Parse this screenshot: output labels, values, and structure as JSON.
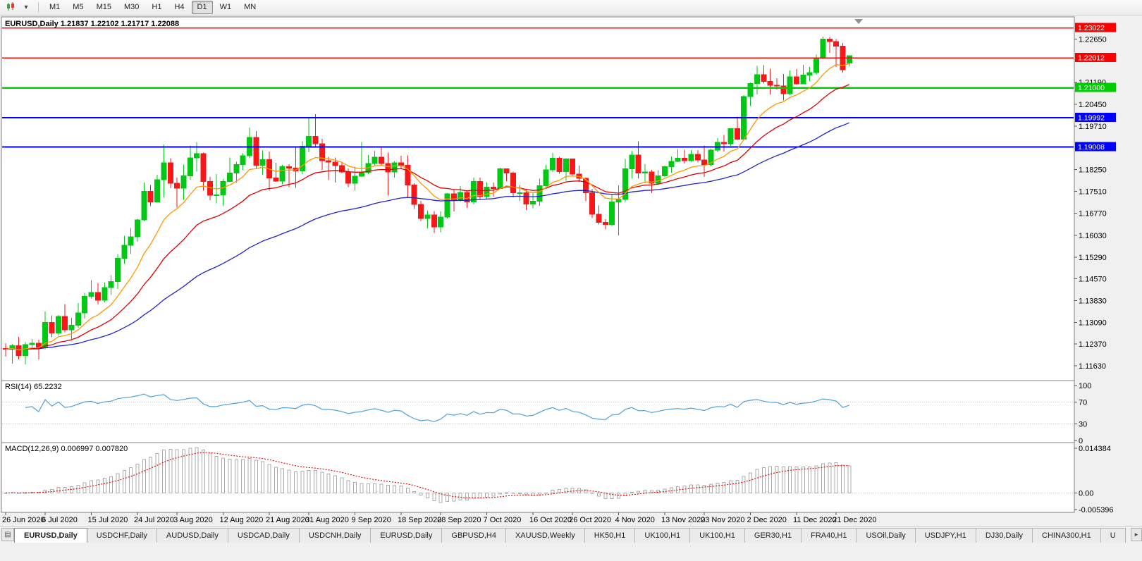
{
  "toolbar": {
    "timeframes": [
      "M1",
      "M5",
      "M15",
      "M30",
      "H1",
      "H4",
      "D1",
      "W1",
      "MN"
    ],
    "selected_timeframe": "D1",
    "icons": {
      "caret": "▾"
    }
  },
  "chart": {
    "symbol": "EURUSD",
    "period": "Daily"
  },
  "chart_data": {
    "type": "candlestick",
    "symbol": "EURUSD",
    "period": "Daily",
    "title": "EURUSD,Daily 1.21837 1.22102 1.21717 1.22088",
    "ohlc": {
      "open": 1.21837,
      "high": 1.22102,
      "low": 1.21717,
      "close": 1.22088
    },
    "colors": {
      "up": "#00C814",
      "down": "#F51818",
      "background": "#FFFFFF",
      "panel_border": "#808080"
    },
    "price_axis": {
      "range": {
        "top": 1.2325,
        "bottom": 1.1118
      },
      "ticks": [
        "1.22650",
        "1.21190",
        "1.20450",
        "1.19710",
        "1.18250",
        "1.17510",
        "1.16770",
        "1.16030",
        "1.15290",
        "1.14570",
        "1.13830",
        "1.13090",
        "1.12370",
        "1.11630"
      ]
    },
    "hlines": [
      {
        "price": 1.23022,
        "label": "1.23022",
        "color": "#FF0000",
        "width": 1.4
      },
      {
        "price": 1.22012,
        "label": "1.22012",
        "color": "#FF0000",
        "width": 1.4
      },
      {
        "price": 1.21,
        "label": "1.21000",
        "color": "#00CC00",
        "width": 2.2
      },
      {
        "price": 1.19992,
        "label": "1.19992",
        "color": "#0000FF",
        "width": 2.2
      },
      {
        "price": 1.19008,
        "label": "1.19008",
        "color": "#0000FF",
        "width": 2.2
      }
    ],
    "moving_averages": [
      {
        "period": 10,
        "method": "ema",
        "color": "#FF9900"
      },
      {
        "period": 21,
        "method": "ema",
        "color": "#E00000"
      },
      {
        "period": 50,
        "method": "ema",
        "color": "#2222CC"
      }
    ],
    "rsi": {
      "label": "RSI(14) 65.2232",
      "period": 14,
      "current": 65.2232,
      "color": "#4DA3D9",
      "levels": [
        100,
        70,
        30,
        0
      ],
      "level_lines": [
        70,
        30
      ]
    },
    "macd": {
      "label": "MACD(12,26,9) 0.006997 0.007820",
      "fast": 12,
      "slow": 26,
      "signal_period": 9,
      "current_macd": 0.006997,
      "current_signal": 0.00782,
      "scale_top": 0.014384,
      "scale_bottom": -0.005396,
      "axis_labels": [
        {
          "text": "0.014384",
          "value": 0.014384
        },
        {
          "text": "0.00",
          "value": 0
        },
        {
          "text": "-0.005396",
          "value": -0.005396
        }
      ],
      "histogram_color": "#ABABAB",
      "signal_color": "#E00000"
    },
    "date_labels": [
      {
        "text": "26 Jun 2020",
        "bar": 0
      },
      {
        "text": "6 Jul 2020",
        "bar": 6
      },
      {
        "text": "15 Jul 2020",
        "bar": 13
      },
      {
        "text": "24 Jul 2020",
        "bar": 20
      },
      {
        "text": "3 Aug 2020",
        "bar": 26
      },
      {
        "text": "12 Aug 2020",
        "bar": 33
      },
      {
        "text": "21 Aug 2020",
        "bar": 40
      },
      {
        "text": "31 Aug 2020",
        "bar": 46
      },
      {
        "text": "9 Sep 2020",
        "bar": 53
      },
      {
        "text": "18 Sep 2020",
        "bar": 60
      },
      {
        "text": "28 Sep 2020",
        "bar": 66
      },
      {
        "text": "7 Oct 2020",
        "bar": 73
      },
      {
        "text": "16 Oct 2020",
        "bar": 80
      },
      {
        "text": "26 Oct 2020",
        "bar": 86
      },
      {
        "text": "4 Nov 2020",
        "bar": 93
      },
      {
        "text": "13 Nov 2020",
        "bar": 100
      },
      {
        "text": "23 Nov 2020",
        "bar": 106
      },
      {
        "text": "2 Dec 2020",
        "bar": 113
      },
      {
        "text": "11 Dec 2020",
        "bar": 120
      },
      {
        "text": "21 Dec 2020",
        "bar": 126
      }
    ],
    "candles": [
      [
        1.1221,
        1.1239,
        1.1194,
        1.1219
      ],
      [
        1.1219,
        1.1237,
        1.117,
        1.1231
      ],
      [
        1.1231,
        1.1261,
        1.1184,
        1.1198
      ],
      [
        1.1198,
        1.1243,
        1.1168,
        1.1235
      ],
      [
        1.1235,
        1.1254,
        1.1223,
        1.1239
      ],
      [
        1.1239,
        1.1251,
        1.1185,
        1.1224
      ],
      [
        1.1224,
        1.1346,
        1.1219,
        1.1309
      ],
      [
        1.1309,
        1.1333,
        1.1259,
        1.1274
      ],
      [
        1.1274,
        1.1334,
        1.1265,
        1.133
      ],
      [
        1.133,
        1.1371,
        1.1276,
        1.1284
      ],
      [
        1.1284,
        1.1325,
        1.1254,
        1.13
      ],
      [
        1.13,
        1.1375,
        1.1292,
        1.1341
      ],
      [
        1.1341,
        1.1409,
        1.1322,
        1.1397
      ],
      [
        1.1397,
        1.1452,
        1.139,
        1.141
      ],
      [
        1.141,
        1.1442,
        1.137,
        1.1384
      ],
      [
        1.1384,
        1.1444,
        1.1377,
        1.1427
      ],
      [
        1.1427,
        1.1468,
        1.1402,
        1.1447
      ],
      [
        1.1447,
        1.154,
        1.1422,
        1.1526
      ],
      [
        1.1526,
        1.1601,
        1.1507,
        1.157
      ],
      [
        1.157,
        1.1628,
        1.154,
        1.1598
      ],
      [
        1.1598,
        1.1658,
        1.1581,
        1.1655
      ],
      [
        1.1655,
        1.1781,
        1.165,
        1.1751
      ],
      [
        1.1751,
        1.1773,
        1.1701,
        1.1716
      ],
      [
        1.1716,
        1.1807,
        1.1713,
        1.179
      ],
      [
        1.179,
        1.1909,
        1.173,
        1.1847
      ],
      [
        1.1847,
        1.1863,
        1.1762,
        1.1778
      ],
      [
        1.1778,
        1.1797,
        1.1696,
        1.1762
      ],
      [
        1.1762,
        1.1841,
        1.1723,
        1.1804
      ],
      [
        1.1804,
        1.1906,
        1.179,
        1.1864
      ],
      [
        1.1864,
        1.1916,
        1.1818,
        1.1878
      ],
      [
        1.1878,
        1.1882,
        1.1754,
        1.1785
      ],
      [
        1.1785,
        1.18,
        1.1722,
        1.1738
      ],
      [
        1.1738,
        1.1809,
        1.1711,
        1.1739
      ],
      [
        1.1739,
        1.1793,
        1.1701,
        1.1785
      ],
      [
        1.1785,
        1.1865,
        1.1782,
        1.1813
      ],
      [
        1.1813,
        1.1851,
        1.1781,
        1.1842
      ],
      [
        1.1842,
        1.188,
        1.1823,
        1.1871
      ],
      [
        1.1871,
        1.1966,
        1.1863,
        1.1933
      ],
      [
        1.1933,
        1.1954,
        1.1829,
        1.1839
      ],
      [
        1.1839,
        1.1889,
        1.1807,
        1.1858
      ],
      [
        1.1858,
        1.1885,
        1.1754,
        1.1796
      ],
      [
        1.1796,
        1.1848,
        1.1783,
        1.1786
      ],
      [
        1.1786,
        1.184,
        1.1775,
        1.1834
      ],
      [
        1.1834,
        1.1843,
        1.1765,
        1.183
      ],
      [
        1.183,
        1.1902,
        1.1763,
        1.182
      ],
      [
        1.182,
        1.192,
        1.181,
        1.1903
      ],
      [
        1.1903,
        1.1997,
        1.1883,
        1.1936
      ],
      [
        1.1936,
        1.2011,
        1.1902,
        1.1911
      ],
      [
        1.1911,
        1.1928,
        1.1823,
        1.1854
      ],
      [
        1.1854,
        1.1868,
        1.1789,
        1.185
      ],
      [
        1.185,
        1.1865,
        1.1781,
        1.1838
      ],
      [
        1.1838,
        1.185,
        1.1812,
        1.1816
      ],
      [
        1.1816,
        1.1828,
        1.1765,
        1.1779
      ],
      [
        1.1779,
        1.1834,
        1.1753,
        1.1802
      ],
      [
        1.1802,
        1.1917,
        1.18,
        1.1815
      ],
      [
        1.1815,
        1.1874,
        1.1809,
        1.1845
      ],
      [
        1.1845,
        1.1888,
        1.1839,
        1.1867
      ],
      [
        1.1867,
        1.1901,
        1.1838,
        1.1845
      ],
      [
        1.1845,
        1.1882,
        1.1737,
        1.1816
      ],
      [
        1.1816,
        1.1853,
        1.1797,
        1.1848
      ],
      [
        1.1848,
        1.1871,
        1.1827,
        1.1839
      ],
      [
        1.1839,
        1.1872,
        1.1732,
        1.1772
      ],
      [
        1.1772,
        1.1778,
        1.1692,
        1.1707
      ],
      [
        1.1707,
        1.1719,
        1.1651,
        1.166
      ],
      [
        1.166,
        1.1686,
        1.1626,
        1.1672
      ],
      [
        1.1672,
        1.1685,
        1.1611,
        1.1631
      ],
      [
        1.1631,
        1.1684,
        1.1613,
        1.1664
      ],
      [
        1.1664,
        1.1745,
        1.166,
        1.1743
      ],
      [
        1.1743,
        1.1756,
        1.1684,
        1.1722
      ],
      [
        1.1722,
        1.1769,
        1.1717,
        1.1748
      ],
      [
        1.1748,
        1.1753,
        1.1695,
        1.1716
      ],
      [
        1.1716,
        1.1797,
        1.1707,
        1.1784
      ],
      [
        1.1784,
        1.1798,
        1.1724,
        1.1733
      ],
      [
        1.1733,
        1.1782,
        1.1725,
        1.1765
      ],
      [
        1.1765,
        1.1781,
        1.1733,
        1.1761
      ],
      [
        1.1761,
        1.1831,
        1.1759,
        1.1827
      ],
      [
        1.1827,
        1.1829,
        1.1786,
        1.1813
      ],
      [
        1.1813,
        1.1818,
        1.1731,
        1.1746
      ],
      [
        1.1746,
        1.1772,
        1.1718,
        1.1746
      ],
      [
        1.1746,
        1.1758,
        1.1688,
        1.1708
      ],
      [
        1.1708,
        1.1747,
        1.1694,
        1.1718
      ],
      [
        1.1718,
        1.1794,
        1.1703,
        1.177
      ],
      [
        1.177,
        1.184,
        1.1763,
        1.1824
      ],
      [
        1.1824,
        1.1881,
        1.1817,
        1.1863
      ],
      [
        1.1863,
        1.1868,
        1.1811,
        1.1818
      ],
      [
        1.1818,
        1.1863,
        1.1787,
        1.186
      ],
      [
        1.186,
        1.1861,
        1.1802,
        1.181
      ],
      [
        1.181,
        1.1838,
        1.1783,
        1.1795
      ],
      [
        1.1795,
        1.1797,
        1.1718,
        1.1746
      ],
      [
        1.1746,
        1.1759,
        1.1661,
        1.1674
      ],
      [
        1.1674,
        1.1704,
        1.164,
        1.1647
      ],
      [
        1.1647,
        1.1657,
        1.1623,
        1.164
      ],
      [
        1.164,
        1.174,
        1.1633,
        1.1715
      ],
      [
        1.1715,
        1.1771,
        1.1603,
        1.1724
      ],
      [
        1.1724,
        1.186,
        1.1716,
        1.1827
      ],
      [
        1.1827,
        1.1888,
        1.1795,
        1.1873
      ],
      [
        1.1873,
        1.192,
        1.1795,
        1.1813
      ],
      [
        1.1813,
        1.1843,
        1.1779,
        1.1816
      ],
      [
        1.1816,
        1.1824,
        1.1745,
        1.1779
      ],
      [
        1.1779,
        1.1823,
        1.1772,
        1.1803
      ],
      [
        1.1803,
        1.1838,
        1.1799,
        1.1834
      ],
      [
        1.1834,
        1.1869,
        1.1814,
        1.1852
      ],
      [
        1.1852,
        1.1894,
        1.185,
        1.1863
      ],
      [
        1.1863,
        1.1891,
        1.1845,
        1.1854
      ],
      [
        1.1854,
        1.189,
        1.1851,
        1.1876
      ],
      [
        1.1876,
        1.189,
        1.1849,
        1.1857
      ],
      [
        1.1857,
        1.1906,
        1.18,
        1.1842
      ],
      [
        1.1842,
        1.1895,
        1.1836,
        1.189
      ],
      [
        1.189,
        1.193,
        1.1883,
        1.1916
      ],
      [
        1.1916,
        1.1941,
        1.1885,
        1.1912
      ],
      [
        1.1912,
        1.1964,
        1.1905,
        1.1963
      ],
      [
        1.1963,
        1.2003,
        1.1924,
        1.1927
      ],
      [
        1.1927,
        1.2076,
        1.1922,
        1.2071
      ],
      [
        1.2071,
        1.2118,
        1.2039,
        1.2115
      ],
      [
        1.2115,
        1.2174,
        1.2078,
        1.2144
      ],
      [
        1.2144,
        1.2177,
        1.2115,
        1.2122
      ],
      [
        1.2122,
        1.2165,
        1.2078,
        1.2109
      ],
      [
        1.2109,
        1.2133,
        1.2094,
        1.2106
      ],
      [
        1.2106,
        1.2147,
        1.2058,
        1.208
      ],
      [
        1.208,
        1.2159,
        1.2075,
        1.2137
      ],
      [
        1.2137,
        1.2164,
        1.211,
        1.2113
      ],
      [
        1.2113,
        1.2178,
        1.2112,
        1.2143
      ],
      [
        1.2143,
        1.217,
        1.2123,
        1.2152
      ],
      [
        1.2152,
        1.2212,
        1.2145,
        1.2201
      ],
      [
        1.2201,
        1.2273,
        1.2197,
        1.2264
      ],
      [
        1.2264,
        1.2272,
        1.2218,
        1.2256
      ],
      [
        1.2256,
        1.2264,
        1.217,
        1.2241
      ],
      [
        1.2241,
        1.2251,
        1.2151,
        1.2161
      ],
      [
        1.21837,
        1.22102,
        1.21717,
        1.22088
      ]
    ]
  },
  "tabs": {
    "icons": {
      "list": "▤",
      "scroll_right": "▸"
    },
    "items": [
      {
        "label": "EURUSD,Daily",
        "active": true
      },
      {
        "label": "USDCHF,Daily"
      },
      {
        "label": "AUDUSD,Daily"
      },
      {
        "label": "USDCAD,Daily"
      },
      {
        "label": "USDCNH,Daily"
      },
      {
        "label": "EURUSD,Daily"
      },
      {
        "label": "GBPUSD,H4"
      },
      {
        "label": "XAUUSD,Weekly"
      },
      {
        "label": "HK50,H1"
      },
      {
        "label": "UK100,H1"
      },
      {
        "label": "UK100,H1"
      },
      {
        "label": "GER30,H1"
      },
      {
        "label": "FRA40,H1"
      },
      {
        "label": "USOil,Daily"
      },
      {
        "label": "USDJPY,H1"
      },
      {
        "label": "DJ30,Daily"
      },
      {
        "label": "CHINA300,H1"
      },
      {
        "label": "U"
      }
    ]
  }
}
